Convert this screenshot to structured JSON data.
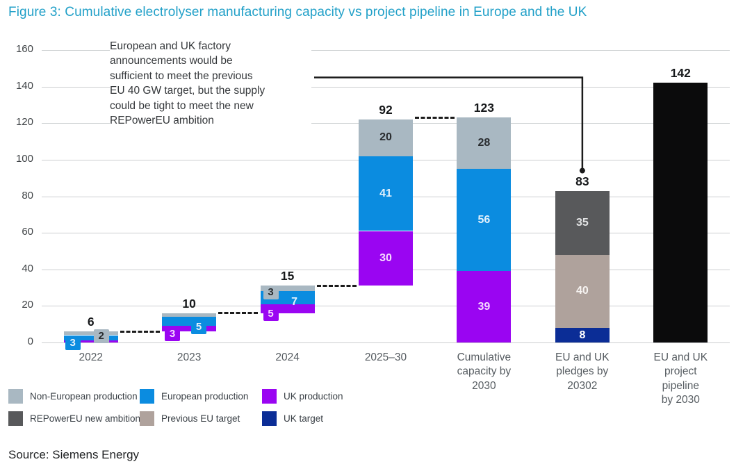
{
  "title": "Figure 3: Cumulative electrolyser manufacturing capacity vs project pipeline in Europe and the UK",
  "annotation": "European and UK factory\nannouncements would be\nsufficient to meet the previous\nEU 40 GW target, but the supply\ncould be tight to meet the new\nREPowerEU ambition",
  "source": "Source: Siemens Energy",
  "legend": {
    "rows": [
      [
        {
          "key": "non_european_production",
          "label": "Non-European production"
        },
        {
          "key": "european_production",
          "label": "European production"
        },
        {
          "key": "uk_production",
          "label": "UK production"
        }
      ],
      [
        {
          "key": "repowereu_new_ambition",
          "label": "REPowerEU new ambition"
        },
        {
          "key": "previous_eu_target",
          "label": "Previous EU target"
        },
        {
          "key": "uk_target",
          "label": "UK target"
        }
      ]
    ]
  },
  "chart_data": {
    "type": "bar",
    "subtype": "stacked-waterfall",
    "title": "Cumulative electrolyser manufacturing capacity vs project pipeline in Europe and the UK",
    "ylabel": "",
    "xlabel": "",
    "ylim": [
      0,
      160
    ],
    "ytick_step": 20,
    "grid": true,
    "colors": {
      "non_european_production": "#A9B8C2",
      "european_production": "#0B8CE0",
      "uk_production": "#9A05F2",
      "repowereu_new_ambition": "#58595B",
      "previous_eu_target": "#AFA29C",
      "uk_target": "#0B2D96",
      "project_pipeline": "#0B0B0C"
    },
    "bars": [
      {
        "category": "2022",
        "base": 0,
        "total_label": "6",
        "segments": [
          {
            "key": "uk_production",
            "value": 1,
            "label": ""
          },
          {
            "key": "european_production",
            "value": 3,
            "label": "3"
          },
          {
            "key": "non_european_production",
            "value": 2,
            "label": "2"
          }
        ]
      },
      {
        "category": "2023",
        "base": 6,
        "total_label": "10",
        "segments": [
          {
            "key": "uk_production",
            "value": 3,
            "label": "3"
          },
          {
            "key": "european_production",
            "value": 5,
            "label": "5"
          },
          {
            "key": "non_european_production",
            "value": 2,
            "label": ""
          }
        ]
      },
      {
        "category": "2024",
        "base": 16,
        "total_label": "15",
        "segments": [
          {
            "key": "uk_production",
            "value": 5,
            "label": "5"
          },
          {
            "key": "european_production",
            "value": 7,
            "label": "7"
          },
          {
            "key": "non_european_production",
            "value": 3,
            "label": "3"
          }
        ]
      },
      {
        "category": "2025–30",
        "base": 31,
        "total_label": "92",
        "segments": [
          {
            "key": "uk_production",
            "value": 30,
            "label": "30"
          },
          {
            "key": "european_production",
            "value": 41,
            "label": "41"
          },
          {
            "key": "non_european_production",
            "value": 20,
            "label": "20"
          }
        ]
      },
      {
        "category": "Cumulative\ncapacity by\n2030",
        "base": 0,
        "total_label": "123",
        "segments": [
          {
            "key": "uk_production",
            "value": 39,
            "label": "39"
          },
          {
            "key": "european_production",
            "value": 56,
            "label": "56"
          },
          {
            "key": "non_european_production",
            "value": 28,
            "label": "28"
          }
        ]
      },
      {
        "category": "EU and UK\npledges by\n20302",
        "base": 0,
        "total_label": "83",
        "segments": [
          {
            "key": "uk_target",
            "value": 8,
            "label": "8"
          },
          {
            "key": "previous_eu_target",
            "value": 40,
            "label": "40"
          },
          {
            "key": "repowereu_new_ambition",
            "value": 35,
            "label": "35"
          }
        ]
      },
      {
        "category": "EU and UK\nproject\npipeline\nby 2030",
        "base": 0,
        "total_label": "142",
        "segments": [
          {
            "key": "project_pipeline",
            "value": 142,
            "label": ""
          }
        ]
      }
    ],
    "connectors": [
      {
        "from": 0,
        "to": 1,
        "level": 6
      },
      {
        "from": 1,
        "to": 2,
        "level": 16
      },
      {
        "from": 2,
        "to": 3,
        "level": 31
      },
      {
        "from": 3,
        "to": 4,
        "level": 123
      }
    ],
    "callout": {
      "level": 145,
      "target_bar": 5
    }
  }
}
